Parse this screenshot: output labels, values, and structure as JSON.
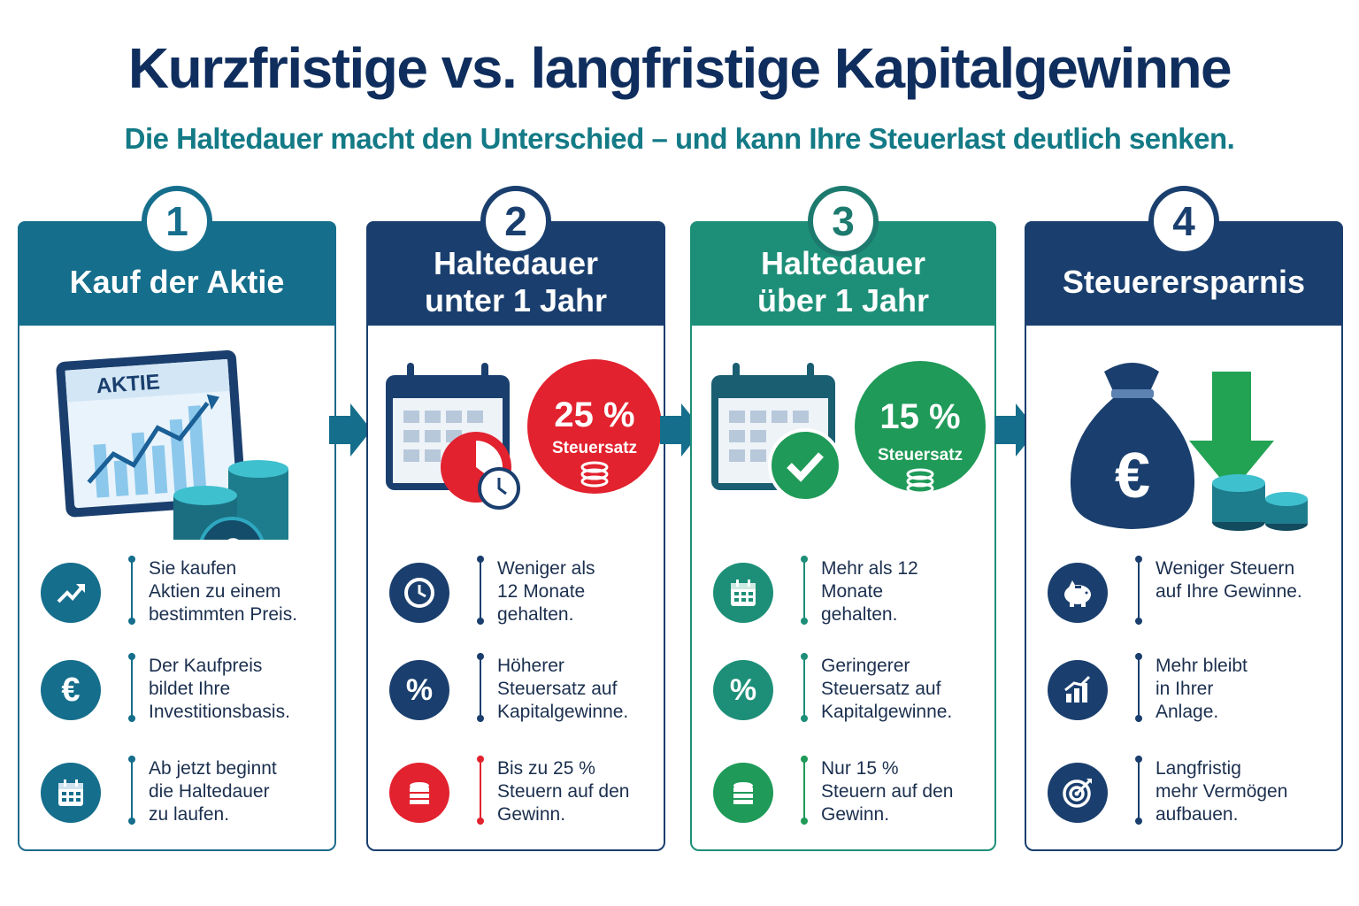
{
  "title": "Kurzfristige vs. langfristige Kapitalgewinne",
  "subtitle": "Die Haltedauer macht den Unterschied – und kann Ihre Steuerlast deutlich senken.",
  "colors": {
    "navy": "#1a3f6e",
    "teal": "#156e8c",
    "green": "#1d8f78",
    "red": "#e2222e",
    "green_badge": "#22a354"
  },
  "steps": [
    {
      "number": "1",
      "heading": "Kauf der Aktie",
      "illustration_label": "AKTIE",
      "items": [
        {
          "icon": "trend-up-icon",
          "text": "Sie kaufen\nAktien zu einem\nbestimmten Preis."
        },
        {
          "icon": "euro-icon",
          "text": "Der Kaufpreis\nbildet Ihre\nInvestitionsbasis."
        },
        {
          "icon": "calendar-icon",
          "text": "Ab jetzt beginnt\ndie Haltedauer\nzu laufen."
        }
      ]
    },
    {
      "number": "2",
      "heading": "Haltedauer\nunter 1 Jahr",
      "rate": "25 %",
      "rate_label": "Steuersatz",
      "items": [
        {
          "icon": "clock-icon",
          "text": "Weniger als\n12 Monate\ngehalten."
        },
        {
          "icon": "percent-icon",
          "text": "Höherer\nSteuersatz auf\nKapitalgewinne."
        },
        {
          "icon": "coins-icon",
          "text": "Bis zu 25 %\nSteuern auf den\nGewinn."
        }
      ]
    },
    {
      "number": "3",
      "heading": "Haltedauer\nüber 1 Jahr",
      "rate": "15 %",
      "rate_label": "Steuersatz",
      "items": [
        {
          "icon": "calendar-icon",
          "text": "Mehr als 12 Monate\ngehalten."
        },
        {
          "icon": "percent-icon",
          "text": "Geringerer\nSteuersatz auf\nKapitalgewinne."
        },
        {
          "icon": "coins-icon",
          "text": "Nur 15 %\nSteuern auf den\nGewinn."
        }
      ]
    },
    {
      "number": "4",
      "heading": "Steuerersparnis",
      "items": [
        {
          "icon": "piggy-bank-icon",
          "text": "Weniger Steuern\nauf Ihre Gewinne."
        },
        {
          "icon": "bar-chart-icon",
          "text": "Mehr bleibt\nin Ihrer\nAnlage."
        },
        {
          "icon": "target-icon",
          "text": "Langfristig\nmehr Vermögen\naufbauen."
        }
      ]
    }
  ]
}
